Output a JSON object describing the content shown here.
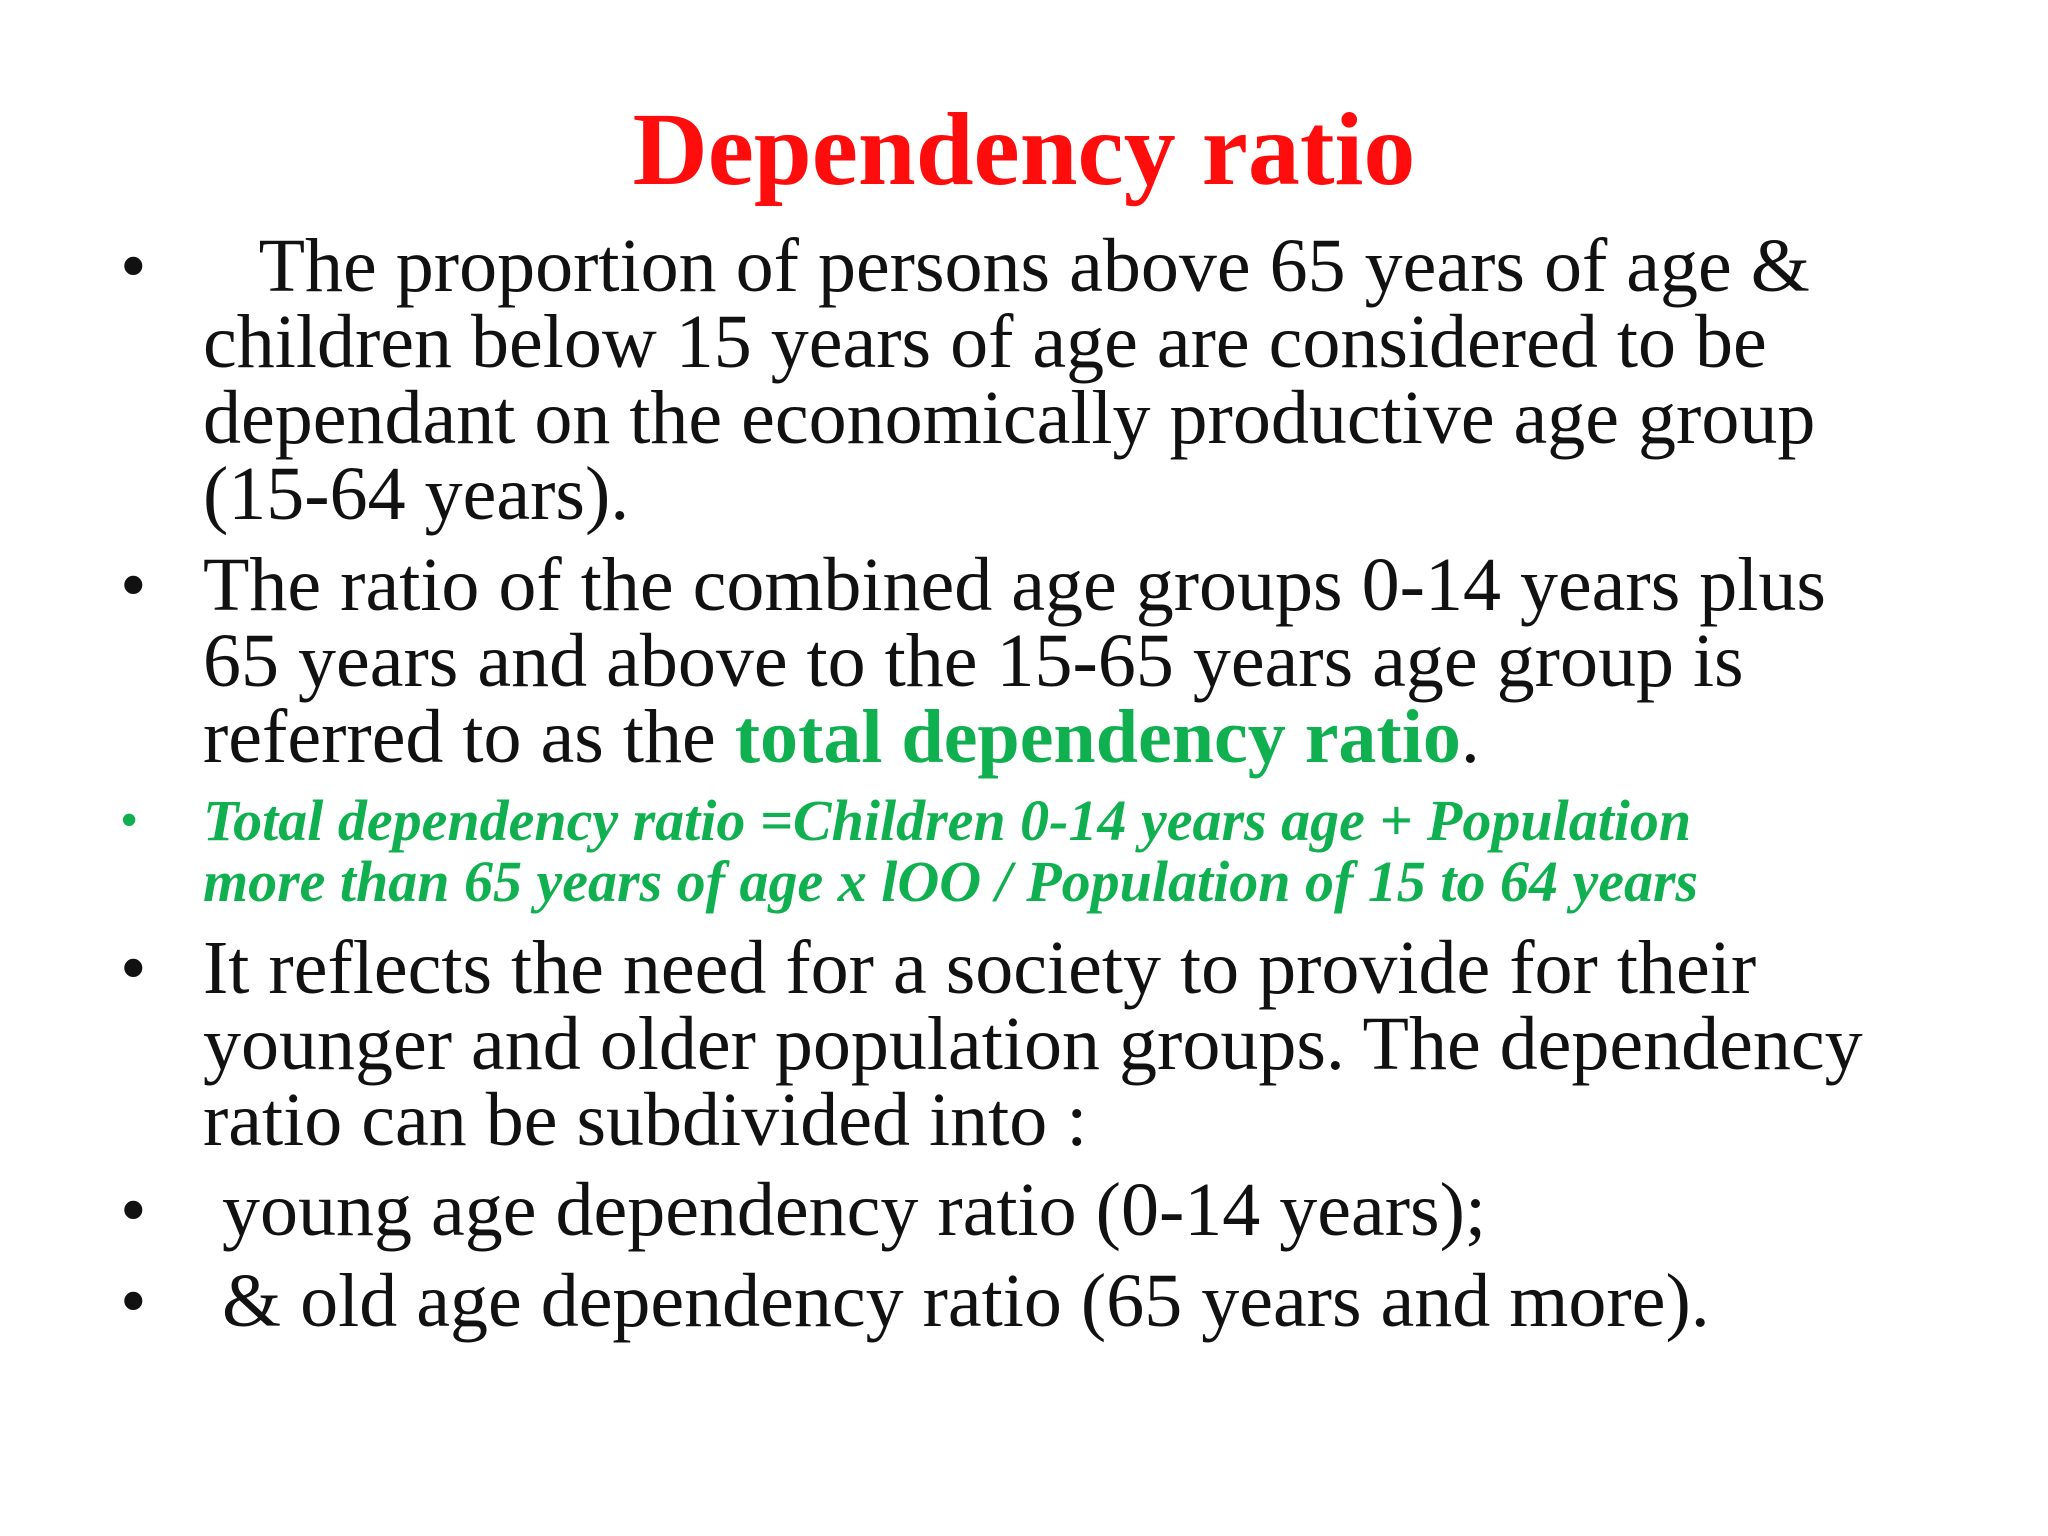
{
  "slide": {
    "title": "Dependency ratio",
    "bullet_char": "•",
    "bullets": [
      {
        "lines": [
          "   The proportion of persons above 65 years of age &",
          "children below 15 years of age are considered to be",
          "dependant on the economically productive age group",
          "(15-64 years)."
        ]
      },
      {
        "lines": [
          "The ratio of the combined age groups 0-14 years plus",
          "65 years and above to the 15-65 years age group is"
        ],
        "last_line_prefix": "referred to as the ",
        "last_line_highlight": "total dependency ratio",
        "last_line_suffix": "."
      },
      {
        "lines": [
          "Total dependency ratio =Children 0-14 years age + Population",
          "more than 65 years of age x lOO / Population of 15 to 64 years"
        ]
      },
      {
        "lines": [
          "It reflects the need for a society to provide for their",
          "younger and older population groups. The dependency",
          "ratio can be subdivided into :"
        ]
      },
      {
        "lines": [
          " young age dependency ratio (0-14 years);"
        ]
      },
      {
        "lines": [
          " & old age dependency ratio (65 years and more)."
        ]
      }
    ],
    "colors": {
      "title": "#ff0d0d",
      "highlight": "#10b050",
      "text": "#111111",
      "background": "#ffffff"
    }
  }
}
